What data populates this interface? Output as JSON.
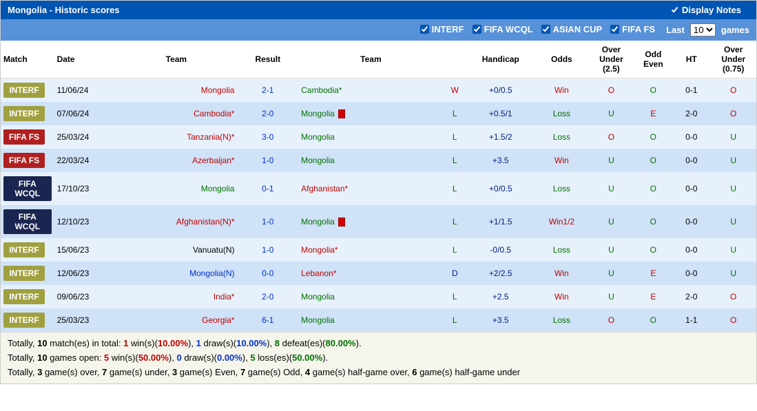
{
  "header": {
    "title": "Mongolia - Historic scores",
    "displayNotesLabel": "Display Notes",
    "displayNotesChecked": true
  },
  "filters": {
    "options": [
      {
        "label": "INTERF",
        "checked": true
      },
      {
        "label": "FIFA WCQL",
        "checked": true
      },
      {
        "label": "ASIAN CUP",
        "checked": true
      },
      {
        "label": "FIFA FS",
        "checked": true
      }
    ],
    "lastLabel": "Last",
    "gamesLabel": "games",
    "lastValue": "10"
  },
  "columns": [
    "Match",
    "Date",
    "Team",
    "Result",
    "Team",
    "",
    "Handicap",
    "Odds",
    "Over Under (2.5)",
    "Odd Even",
    "HT",
    "Over Under (0.75)"
  ],
  "rows": [
    {
      "tag": "INTERF",
      "tagCls": "interf",
      "date": "11/06/24",
      "home": "Mongolia",
      "homeCls": "c-red",
      "result": "2-1",
      "resCls": "c-blue",
      "away": "Cambodia*",
      "awayCls": "c-green",
      "card": false,
      "wdl": "W",
      "wdlCls": "c-red",
      "hcap": "+0/0.5",
      "odds": "Win",
      "oddsCls": "c-red",
      "ou25": "O",
      "ou25Cls": "c-red",
      "oe": "O",
      "oeCls": "c-green",
      "ht": "0-1",
      "ou075": "O",
      "ou075Cls": "c-red"
    },
    {
      "tag": "INTERF",
      "tagCls": "interf",
      "date": "07/06/24",
      "home": "Cambodia*",
      "homeCls": "c-red",
      "result": "2-0",
      "resCls": "c-blue",
      "away": "Mongolia",
      "awayCls": "c-green",
      "card": true,
      "wdl": "L",
      "wdlCls": "c-green",
      "hcap": "+0.5/1",
      "odds": "Loss",
      "oddsCls": "c-green",
      "ou25": "U",
      "ou25Cls": "c-green",
      "oe": "E",
      "oeCls": "c-red",
      "ht": "2-0",
      "ou075": "O",
      "ou075Cls": "c-red"
    },
    {
      "tag": "FIFA FS",
      "tagCls": "fifa-fs",
      "date": "25/03/24",
      "home": "Tanzania(N)*",
      "homeCls": "c-red",
      "result": "3-0",
      "resCls": "c-blue",
      "away": "Mongolia",
      "awayCls": "c-green",
      "card": false,
      "wdl": "L",
      "wdlCls": "c-green",
      "hcap": "+1.5/2",
      "odds": "Loss",
      "oddsCls": "c-green",
      "ou25": "O",
      "ou25Cls": "c-red",
      "oe": "O",
      "oeCls": "c-green",
      "ht": "0-0",
      "ou075": "U",
      "ou075Cls": "c-green"
    },
    {
      "tag": "FIFA FS",
      "tagCls": "fifa-fs",
      "date": "22/03/24",
      "home": "Azerbaijan*",
      "homeCls": "c-red",
      "result": "1-0",
      "resCls": "c-blue",
      "away": "Mongolia",
      "awayCls": "c-green",
      "card": false,
      "wdl": "L",
      "wdlCls": "c-green",
      "hcap": "+3.5",
      "odds": "Win",
      "oddsCls": "c-red",
      "ou25": "U",
      "ou25Cls": "c-green",
      "oe": "O",
      "oeCls": "c-green",
      "ht": "0-0",
      "ou075": "U",
      "ou075Cls": "c-green"
    },
    {
      "tag": "FIFA WCQL",
      "tagCls": "fifa-wcql",
      "date": "17/10/23",
      "home": "Mongolia",
      "homeCls": "c-green",
      "result": "0-1",
      "resCls": "c-blue",
      "away": "Afghanistan*",
      "awayCls": "c-red",
      "card": false,
      "wdl": "L",
      "wdlCls": "c-green",
      "hcap": "+0/0.5",
      "odds": "Loss",
      "oddsCls": "c-green",
      "ou25": "U",
      "ou25Cls": "c-green",
      "oe": "O",
      "oeCls": "c-green",
      "ht": "0-0",
      "ou075": "U",
      "ou075Cls": "c-green"
    },
    {
      "tag": "FIFA WCQL",
      "tagCls": "fifa-wcql",
      "date": "12/10/23",
      "home": "Afghanistan(N)*",
      "homeCls": "c-red",
      "result": "1-0",
      "resCls": "c-blue",
      "away": "Mongolia",
      "awayCls": "c-green",
      "card": true,
      "wdl": "L",
      "wdlCls": "c-green",
      "hcap": "+1/1.5",
      "odds": "Win1/2",
      "oddsCls": "c-red",
      "ou25": "U",
      "ou25Cls": "c-green",
      "oe": "O",
      "oeCls": "c-green",
      "ht": "0-0",
      "ou075": "U",
      "ou075Cls": "c-green"
    },
    {
      "tag": "INTERF",
      "tagCls": "interf",
      "date": "15/06/23",
      "home": "Vanuatu(N)",
      "homeCls": "",
      "result": "1-0",
      "resCls": "c-blue",
      "away": "Mongolia*",
      "awayCls": "c-red",
      "card": false,
      "wdl": "L",
      "wdlCls": "c-green",
      "hcap": "-0/0.5",
      "odds": "Loss",
      "oddsCls": "c-green",
      "ou25": "U",
      "ou25Cls": "c-green",
      "oe": "O",
      "oeCls": "c-green",
      "ht": "0-0",
      "ou075": "U",
      "ou075Cls": "c-green"
    },
    {
      "tag": "INTERF",
      "tagCls": "interf",
      "date": "12/06/23",
      "home": "Mongolia(N)",
      "homeCls": "c-blue",
      "result": "0-0",
      "resCls": "c-blue",
      "away": "Lebanon*",
      "awayCls": "c-red",
      "card": false,
      "wdl": "D",
      "wdlCls": "c-dblue",
      "hcap": "+2/2.5",
      "odds": "Win",
      "oddsCls": "c-red",
      "ou25": "U",
      "ou25Cls": "c-green",
      "oe": "E",
      "oeCls": "c-red",
      "ht": "0-0",
      "ou075": "U",
      "ou075Cls": "c-green"
    },
    {
      "tag": "INTERF",
      "tagCls": "interf",
      "date": "09/06/23",
      "home": "India*",
      "homeCls": "c-red",
      "result": "2-0",
      "resCls": "c-blue",
      "away": "Mongolia",
      "awayCls": "c-green",
      "card": false,
      "wdl": "L",
      "wdlCls": "c-green",
      "hcap": "+2.5",
      "odds": "Win",
      "oddsCls": "c-red",
      "ou25": "U",
      "ou25Cls": "c-green",
      "oe": "E",
      "oeCls": "c-red",
      "ht": "2-0",
      "ou075": "O",
      "ou075Cls": "c-red"
    },
    {
      "tag": "INTERF",
      "tagCls": "interf",
      "date": "25/03/23",
      "home": "Georgia*",
      "homeCls": "c-red",
      "result": "6-1",
      "resCls": "c-blue",
      "away": "Mongolia",
      "awayCls": "c-green",
      "card": false,
      "wdl": "L",
      "wdlCls": "c-green",
      "hcap": "+3.5",
      "odds": "Loss",
      "oddsCls": "c-green",
      "ou25": "O",
      "ou25Cls": "c-red",
      "oe": "O",
      "oeCls": "c-green",
      "ht": "1-1",
      "ou075": "O",
      "ou075Cls": "c-red"
    }
  ],
  "summary": {
    "line1": {
      "pre": "Totally, ",
      "m": "10",
      "m2": " match(es) in total: ",
      "w": "1",
      "wt": " win(s)(",
      "wp": "10.00%",
      "wt2": "), ",
      "d": "1",
      "dt": " draw(s)(",
      "dp": "10.00%",
      "dt2": "), ",
      "l": "8",
      "lt": " defeat(es)(",
      "lp": "80.00%",
      "lt2": ")."
    },
    "line2": {
      "pre": "Totally, ",
      "m": "10",
      "m2": " games open: ",
      "w": "5",
      "wt": " win(s)(",
      "wp": "50.00%",
      "wt2": "), ",
      "d": "0",
      "dt": " draw(s)(",
      "dp": "0.00%",
      "dt2": "), ",
      "l": "5",
      "lt": " loss(es)(",
      "lp": "50.00%",
      "lt2": ")."
    },
    "line3": {
      "pre": "Totally, ",
      "a": "3",
      "at": " game(s) over, ",
      "b": "7",
      "bt": " game(s) under, ",
      "c": "3",
      "ct": " game(s) Even, ",
      "d": "7",
      "dt": " game(s) Odd, ",
      "e": "4",
      "et": " game(s) half-game over, ",
      "f": "6",
      "ft": " game(s) half-game under"
    }
  }
}
